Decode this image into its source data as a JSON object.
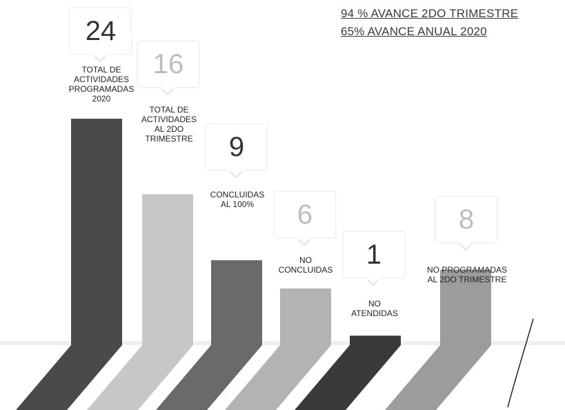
{
  "header": {
    "line1": "94 % AVANCE 2DO TRIMESTRE",
    "line2": "65% AVANCE ANUAL 2020"
  },
  "colors": {
    "bar_dark": "#4a4a4a",
    "bar_light": "#c7c7c7",
    "bar_medium": "#6a6a6a",
    "bar_pale": "#b3b3b3",
    "bar_darkest": "#3a3a3a",
    "bar_gray": "#9c9c9c"
  },
  "chart_data": {
    "type": "bar",
    "categories": [
      "TOTAL DE ACTIVIDADES PROGRAMADAS 2020",
      "TOTAL DE ACTIVIDADES AL 2DO TRIMESTRE",
      "CONCLUIDAS AL 100%",
      "NO CONCLUIDAS",
      "NO ATENDIDAS",
      "NO PROGRAMADAS AL 2DO TRIMESTRE"
    ],
    "values": [
      24,
      16,
      9,
      6,
      1,
      8
    ],
    "labels": [
      "TOTAL DE\nACTIVIDADES\nPROGRAMADAS\n2020",
      "TOTAL DE\nACTIVIDADES\nAL 2DO\nTRIMESTRE",
      "CONCLUIDAS\nAL 100%",
      "NO\nCONCLUIDAS",
      "NO\nATENDIDAS",
      "NO PROGRAMADAS\nAL 2DO TRIMESTRE"
    ],
    "value_text": [
      "24",
      "16",
      "9",
      "6",
      "1",
      "8"
    ],
    "ylim": [
      0,
      24
    ],
    "grid": false,
    "legend": "none",
    "title": "",
    "xlabel": "",
    "ylabel": ""
  }
}
